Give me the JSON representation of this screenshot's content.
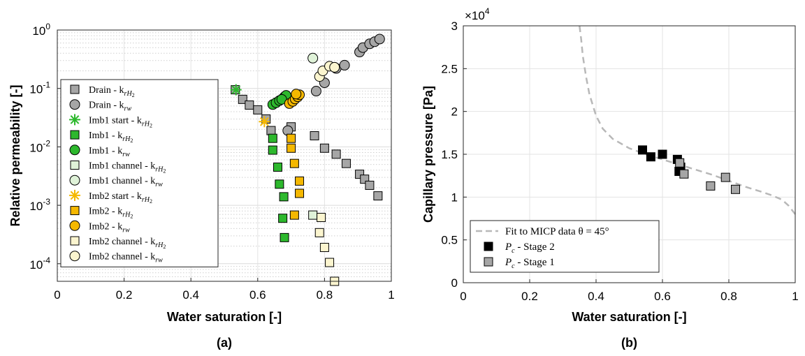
{
  "figure": {
    "panel_a_label": "(a)",
    "panel_b_label": "(b)"
  },
  "chart_data": [
    {
      "type": "scatter",
      "xlabel": "Water saturation [-]",
      "ylabel": "Relative permeability [-]",
      "xlim": [
        0,
        1
      ],
      "ylim": [
        5e-05,
        1
      ],
      "yscale": "log",
      "x_ticks": [
        "0",
        "0.2",
        "0.4",
        "0.6",
        "0.8",
        "1"
      ],
      "y_ticks": [
        {
          "base": "10",
          "exp": "0",
          "value": 1
        },
        {
          "base": "10",
          "exp": "-1",
          "value": 0.1
        },
        {
          "base": "10",
          "exp": "-2",
          "value": 0.01
        },
        {
          "base": "10",
          "exp": "-3",
          "value": 0.001
        },
        {
          "base": "10",
          "exp": "-4",
          "value": 0.0001
        }
      ],
      "grid": true,
      "legend_position": "left",
      "colors": {
        "gray": "#a6a6a6",
        "green": "#2db82d",
        "orange": "#f5b800",
        "light_green": "#dff2d8",
        "light_yellow": "#fbf5cf"
      },
      "series": [
        {
          "name": "Drain - k",
          "sub": "rH",
          "sub2": "2",
          "marker": "square",
          "color": "#a6a6a6",
          "points": [
            [
              0.533,
              0.095
            ],
            [
              0.555,
              0.065
            ],
            [
              0.575,
              0.052
            ],
            [
              0.6,
              0.043
            ],
            [
              0.625,
              0.03
            ],
            [
              0.64,
              0.019
            ],
            [
              0.7,
              0.022
            ],
            [
              0.77,
              0.0155
            ],
            [
              0.8,
              0.0095
            ],
            [
              0.835,
              0.0075
            ],
            [
              0.865,
              0.0052
            ],
            [
              0.905,
              0.0034
            ],
            [
              0.92,
              0.0028
            ],
            [
              0.935,
              0.0022
            ],
            [
              0.96,
              0.00145
            ]
          ]
        },
        {
          "name": "Drain - k",
          "sub": "rw",
          "sub2": "",
          "marker": "circle",
          "color": "#a6a6a6",
          "points": [
            [
              0.69,
              0.019
            ],
            [
              0.775,
              0.09
            ],
            [
              0.8,
              0.125
            ],
            [
              0.835,
              0.22
            ],
            [
              0.86,
              0.25
            ],
            [
              0.905,
              0.42
            ],
            [
              0.915,
              0.5
            ],
            [
              0.935,
              0.58
            ],
            [
              0.95,
              0.63
            ],
            [
              0.965,
              0.7
            ]
          ]
        },
        {
          "name": "Imb1 start - k",
          "sub": "rH",
          "sub2": "2",
          "marker": "asterisk",
          "color": "#2db82d",
          "points": [
            [
              0.535,
              0.095
            ]
          ]
        },
        {
          "name": "Imb1 - k",
          "sub": "rH",
          "sub2": "2",
          "marker": "square",
          "color": "#2db82d",
          "points": [
            [
              0.645,
              0.014
            ],
            [
              0.645,
              0.0088
            ],
            [
              0.66,
              0.0045
            ],
            [
              0.665,
              0.0023
            ],
            [
              0.678,
              0.0014
            ],
            [
              0.675,
              0.0006
            ],
            [
              0.68,
              0.00028
            ]
          ]
        },
        {
          "name": "Imb1 - k",
          "sub": "rw",
          "sub2": "",
          "marker": "circle",
          "color": "#2db82d",
          "points": [
            [
              0.645,
              0.053
            ],
            [
              0.655,
              0.057
            ],
            [
              0.665,
              0.062
            ],
            [
              0.675,
              0.067
            ],
            [
              0.68,
              0.072
            ],
            [
              0.685,
              0.076
            ],
            [
              0.672,
              0.065
            ]
          ]
        },
        {
          "name": "Imb1 channel - k",
          "sub": "rH",
          "sub2": "2",
          "marker": "square",
          "color": "#dff2d8",
          "points": [
            [
              0.765,
              0.00068
            ]
          ]
        },
        {
          "name": "Imb1 channel - k",
          "sub": "rw",
          "sub2": "",
          "marker": "circle",
          "color": "#dff2d8",
          "points": [
            [
              0.765,
              0.33
            ]
          ]
        },
        {
          "name": "Imb2 start - k",
          "sub": "rH",
          "sub2": "2",
          "marker": "asterisk",
          "color": "#f5b800",
          "points": [
            [
              0.62,
              0.027
            ]
          ]
        },
        {
          "name": "Imb2 - k",
          "sub": "rH",
          "sub2": "2",
          "marker": "square",
          "color": "#f5b800",
          "points": [
            [
              0.7,
              0.014
            ],
            [
              0.7,
              0.0095
            ],
            [
              0.71,
              0.0052
            ],
            [
              0.725,
              0.0026
            ],
            [
              0.725,
              0.0016
            ],
            [
              0.71,
              0.00068
            ]
          ]
        },
        {
          "name": "Imb2 - k",
          "sub": "rw",
          "sub2": "",
          "marker": "circle",
          "color": "#f5b800",
          "points": [
            [
              0.695,
              0.055
            ],
            [
              0.705,
              0.06
            ],
            [
              0.712,
              0.066
            ],
            [
              0.72,
              0.072
            ],
            [
              0.725,
              0.078
            ],
            [
              0.715,
              0.08
            ]
          ]
        },
        {
          "name": "Imb2 channel - k",
          "sub": "rH",
          "sub2": "2",
          "marker": "square",
          "color": "#fbf5cf",
          "points": [
            [
              0.79,
              0.00062
            ],
            [
              0.785,
              0.00034
            ],
            [
              0.8,
              0.00019
            ],
            [
              0.815,
              0.000105
            ],
            [
              0.83,
              5e-05
            ]
          ]
        },
        {
          "name": "Imb2 channel - k",
          "sub": "rw",
          "sub2": "",
          "marker": "circle",
          "color": "#fbf5cf",
          "points": [
            [
              0.785,
              0.16
            ],
            [
              0.795,
              0.2
            ],
            [
              0.815,
              0.24
            ],
            [
              0.83,
              0.23
            ]
          ]
        }
      ]
    },
    {
      "type": "scatter",
      "xlabel": "Water saturation [-]",
      "ylabel": "Capillary pressure [Pa]",
      "xlim": [
        0,
        1
      ],
      "ylim": [
        0,
        30000
      ],
      "y_multiplier": {
        "base": "×10",
        "exp": "4"
      },
      "x_ticks": [
        "0",
        "0.2",
        "0.4",
        "0.6",
        "0.8",
        "1"
      ],
      "y_ticks": [
        "0",
        "0.5",
        "1",
        "1.5",
        "2",
        "2.5",
        "3"
      ],
      "grid": true,
      "legend_position": "bottom-left",
      "series": [
        {
          "name": "Fit to MICP data θ = 45°",
          "marker": "dashed-line",
          "color": "#b8b8b8",
          "points": [
            [
              0.35,
              30000
            ],
            [
              0.355,
              28500
            ],
            [
              0.36,
              26500
            ],
            [
              0.37,
              24000
            ],
            [
              0.38,
              22000
            ],
            [
              0.4,
              19500
            ],
            [
              0.42,
              18000
            ],
            [
              0.45,
              16800
            ],
            [
              0.5,
              15700
            ],
            [
              0.55,
              15000
            ],
            [
              0.6,
              14400
            ],
            [
              0.65,
              13800
            ],
            [
              0.7,
              13200
            ],
            [
              0.75,
              12600
            ],
            [
              0.8,
              11900
            ],
            [
              0.85,
              11200
            ],
            [
              0.9,
              10600
            ],
            [
              0.93,
              10200
            ],
            [
              0.96,
              9700
            ],
            [
              0.98,
              9000
            ],
            [
              1.0,
              8000
            ]
          ]
        },
        {
          "name": "P",
          "sub": "c",
          "suffix": " - Stage 2",
          "marker": "square",
          "color": "#000000",
          "points": [
            [
              0.54,
              15500
            ],
            [
              0.565,
              14700
            ],
            [
              0.6,
              15000
            ],
            [
              0.645,
              14400
            ],
            [
              0.65,
              13000
            ],
            [
              0.655,
              13500
            ]
          ]
        },
        {
          "name": "P",
          "sub": "c",
          "suffix": " - Stage 1",
          "marker": "square",
          "color": "#a6a6a6",
          "points": [
            [
              0.652,
              14000
            ],
            [
              0.665,
              12700
            ],
            [
              0.745,
              11300
            ],
            [
              0.79,
              12300
            ],
            [
              0.82,
              10900
            ]
          ]
        }
      ]
    }
  ]
}
